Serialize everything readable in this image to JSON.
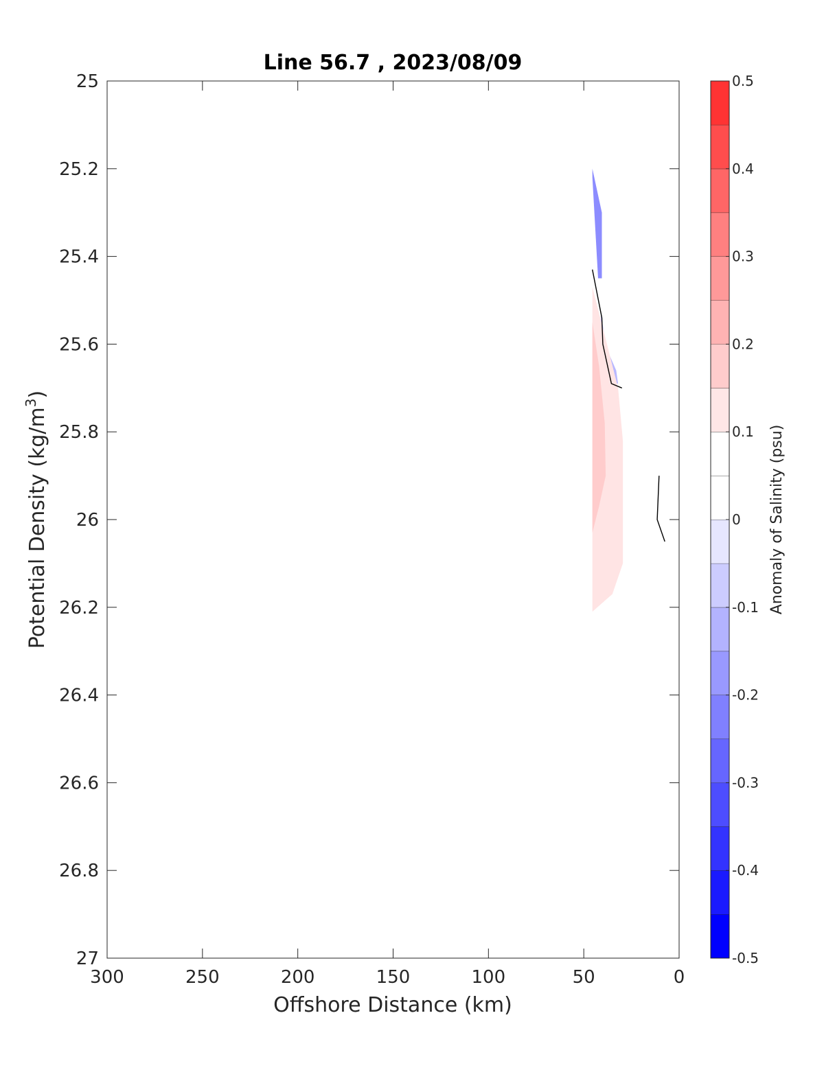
{
  "chart_data": {
    "type": "heatmap",
    "title": "Line 56.7 , 2023/08/09",
    "xlabel": "Offshore Distance (km)",
    "ylabel_main": "Potential Density (kg/m",
    "ylabel_sup": "3",
    "ylabel_end": ")",
    "xlim": [
      300,
      0
    ],
    "ylim": [
      25,
      27
    ],
    "x_reversed": true,
    "y_reversed": true,
    "xticks": [
      300,
      250,
      200,
      150,
      100,
      50,
      0
    ],
    "xtick_labels": [
      "300",
      "250",
      "200",
      "150",
      "100",
      "50",
      "0"
    ],
    "yticks": [
      25,
      25.2,
      25.4,
      25.6,
      25.8,
      26,
      26.2,
      26.4,
      26.6,
      26.8,
      27
    ],
    "ytick_labels": [
      "25",
      "25.2",
      "25.4",
      "25.6",
      "25.8",
      "26",
      "26.2",
      "26.4",
      "26.6",
      "26.8",
      "27"
    ],
    "grid": false,
    "colorbar": {
      "label": "Anomaly of Salinity (psu)",
      "range": [
        -0.5,
        0.5
      ],
      "ticks": [
        -0.5,
        -0.4,
        -0.3,
        -0.2,
        -0.1,
        0,
        0.1,
        0.2,
        0.3,
        0.4,
        0.5
      ],
      "tick_labels": [
        "-0.5",
        "-0.4",
        "-0.3",
        "-0.2",
        "-0.1",
        "0",
        "0.1",
        "0.2",
        "0.3",
        "0.4",
        "0.5"
      ],
      "levels": [
        -0.5,
        -0.45,
        -0.4,
        -0.35,
        -0.3,
        -0.25,
        -0.2,
        -0.15,
        -0.1,
        -0.05,
        0,
        0.05,
        0.1,
        0.15,
        0.2,
        0.25,
        0.3,
        0.35,
        0.4,
        0.45,
        0.5
      ],
      "colors": [
        "#0000ff",
        "#1a1aff",
        "#3333ff",
        "#4d4dff",
        "#6666ff",
        "#8080ff",
        "#9999ff",
        "#b3b3ff",
        "#ccccff",
        "#e6e6ff",
        "#ffffff",
        "#ffffff",
        "#ffe6e6",
        "#ffcccc",
        "#ffb3b3",
        "#ff9999",
        "#ff8080",
        "#ff6666",
        "#ff4d4d",
        "#ff3333",
        "#ff1a1a",
        "#ff0000"
      ]
    },
    "regions": [
      {
        "name": "negative-anomaly-upper",
        "color": "#8c8cff",
        "anomaly": -0.2,
        "points": [
          [
            45.5,
            25.2
          ],
          [
            40.5,
            25.3
          ],
          [
            40.5,
            25.45
          ],
          [
            42.5,
            25.45
          ],
          [
            45.5,
            25.22
          ]
        ]
      },
      {
        "name": "negative-anomaly-lower",
        "color": "#b8b8ff",
        "anomaly": -0.15,
        "points": [
          [
            41,
            25.55
          ],
          [
            39,
            25.6
          ],
          [
            33,
            25.66
          ],
          [
            32,
            25.69
          ],
          [
            35,
            25.69
          ],
          [
            38.5,
            25.6
          ],
          [
            41,
            25.53
          ]
        ]
      },
      {
        "name": "positive-anomaly-outer",
        "color": "#ffe4e4",
        "anomaly": 0.07,
        "points": [
          [
            45.5,
            25.47
          ],
          [
            39,
            25.58
          ],
          [
            32,
            25.7
          ],
          [
            29.5,
            25.82
          ],
          [
            29.5,
            26.1
          ],
          [
            35,
            26.17
          ],
          [
            45.5,
            26.21
          ]
        ]
      },
      {
        "name": "positive-anomaly-inner",
        "color": "#ffcccc",
        "anomaly": 0.12,
        "points": [
          [
            45.5,
            25.55
          ],
          [
            42,
            25.65
          ],
          [
            39,
            25.78
          ],
          [
            38.5,
            25.9
          ],
          [
            42,
            25.97
          ],
          [
            45.5,
            26.03
          ]
        ]
      }
    ],
    "contour_lines": [
      {
        "name": "contour-offshore",
        "points": [
          [
            45.5,
            25.43
          ],
          [
            40.5,
            25.54
          ],
          [
            40,
            25.6
          ],
          [
            35.5,
            25.69
          ],
          [
            30,
            25.7
          ]
        ]
      },
      {
        "name": "contour-nearshore",
        "points": [
          [
            10.5,
            25.9
          ],
          [
            11.5,
            26
          ],
          [
            7.5,
            26.05
          ]
        ]
      }
    ]
  }
}
